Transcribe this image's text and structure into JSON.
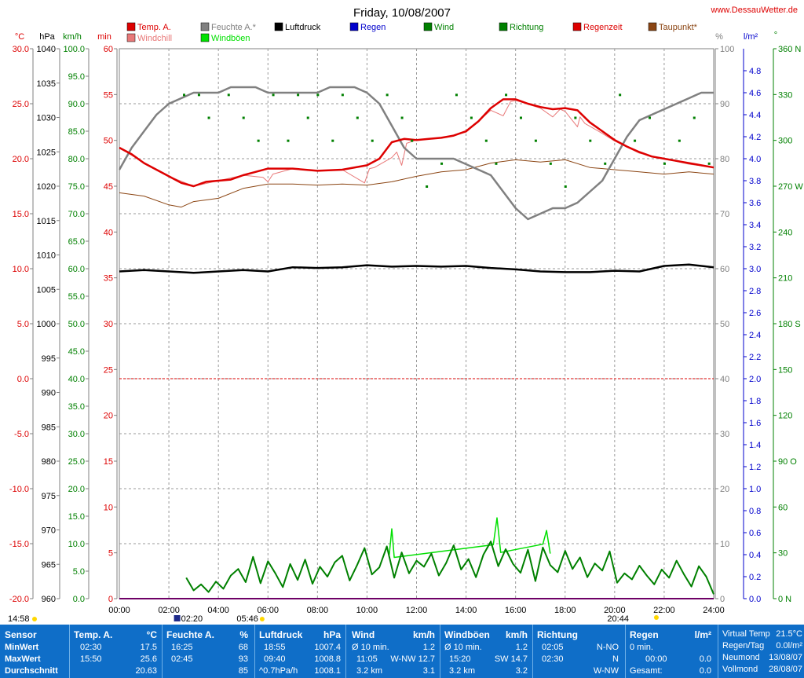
{
  "title": "Friday, 10/08/2007",
  "site": "www.DessauWetter.de",
  "legend": [
    {
      "label": "Temp. A.",
      "color": "#dd0000"
    },
    {
      "label": "Windchill",
      "color": "#e87878"
    },
    {
      "label": "Feuchte A.*",
      "color": "#808080"
    },
    {
      "label": "Windböen",
      "color": "#00e000"
    },
    {
      "label": "Luftdruck",
      "color": "#000000"
    },
    {
      "label": "Regen",
      "color": "#0000cc"
    },
    {
      "label": "Wind",
      "color": "#008000"
    },
    {
      "label": "Richtung",
      "color": "#008000"
    },
    {
      "label": "Regenzeit",
      "color": "#dd0000"
    },
    {
      "label": "Taupunkt*",
      "color": "#8b4513"
    }
  ],
  "axis_units": {
    "temp": "°C",
    "pressure": "hPa",
    "wind": "km/h",
    "min": "min",
    "humidity": "%",
    "rain": "l/m²",
    "direction": "°"
  },
  "chart_data": {
    "type": "line",
    "x_unit": "hours",
    "x_ticks": [
      "00:00",
      "02:00",
      "04:00",
      "06:00",
      "08:00",
      "10:00",
      "12:00",
      "14:00",
      "16:00",
      "18:00",
      "20:00",
      "22:00",
      "24:00"
    ],
    "xlim": [
      0,
      24
    ],
    "axes": {
      "temp": {
        "lim": [
          -20,
          30
        ],
        "ticks": [
          "30.0",
          "25.0",
          "20.0",
          "15.0",
          "10.0",
          "5.0",
          "0.0",
          "-5.0",
          "-10.0",
          "-15.0",
          "-20.0"
        ]
      },
      "pressure": {
        "lim": [
          960,
          1040
        ],
        "ticks": [
          "1040",
          "1035",
          "1030",
          "1025",
          "1020",
          "1015",
          "1010",
          "1005",
          "1000",
          "995",
          "990",
          "985",
          "980",
          "975",
          "970",
          "965",
          "960"
        ]
      },
      "wind": {
        "lim": [
          0,
          100
        ],
        "ticks": [
          "100.0",
          "95.0",
          "90.0",
          "85.0",
          "80.0",
          "75.0",
          "70.0",
          "65.0",
          "60.0",
          "55.0",
          "50.0",
          "45.0",
          "40.0",
          "35.0",
          "30.0",
          "25.0",
          "20.0",
          "15.0",
          "10.0",
          "5.0",
          "0.0"
        ]
      },
      "minutes": {
        "lim": [
          0,
          60
        ],
        "ticks": [
          "60",
          "55",
          "50",
          "45",
          "40",
          "35",
          "30",
          "25",
          "20",
          "15",
          "10",
          "5",
          "0"
        ]
      },
      "humidity": {
        "lim": [
          0,
          100
        ],
        "ticks": [
          "100",
          "90",
          "80",
          "70",
          "60",
          "50",
          "40",
          "30",
          "20",
          "10",
          "0"
        ]
      },
      "rain": {
        "lim": [
          0,
          5
        ],
        "ticks": [
          "4.8",
          "4.6",
          "4.4",
          "4.2",
          "4.0",
          "3.8",
          "3.6",
          "3.4",
          "3.2",
          "3.0",
          "2.8",
          "2.6",
          "2.4",
          "2.2",
          "2.0",
          "1.8",
          "1.6",
          "1.4",
          "1.2",
          "1.0",
          "0.8",
          "0.6",
          "0.4",
          "0.2",
          "0.0"
        ]
      },
      "direction": {
        "lim": [
          0,
          360
        ],
        "ticks": [
          "360 N",
          "330",
          "300",
          "270 W",
          "240",
          "210",
          "180 S",
          "150",
          "120",
          "90 O",
          "60",
          "30",
          "0 N"
        ]
      }
    },
    "series": [
      {
        "name": "Temp. A.",
        "axis": "temp",
        "x": [
          0,
          0.5,
          1,
          1.5,
          2,
          2.5,
          3,
          3.5,
          4,
          4.5,
          5,
          5.5,
          6,
          7,
          8,
          9,
          10,
          10.5,
          11,
          11.5,
          12,
          12.5,
          13,
          13.5,
          14,
          14.5,
          15,
          15.5,
          16,
          16.5,
          17,
          17.5,
          18,
          18.5,
          19,
          19.5,
          20,
          20.5,
          21,
          21.5,
          22,
          22.5,
          23,
          23.5,
          24
        ],
        "values": [
          21.0,
          20.4,
          19.6,
          19.0,
          18.4,
          17.8,
          17.5,
          17.9,
          18.0,
          18.1,
          18.5,
          18.8,
          19.1,
          19.1,
          18.9,
          19.0,
          19.4,
          20.0,
          21.5,
          21.8,
          21.7,
          21.8,
          21.9,
          22.1,
          22.5,
          23.4,
          24.6,
          25.4,
          25.4,
          25.0,
          24.7,
          24.5,
          24.6,
          24.4,
          23.3,
          22.5,
          21.7,
          21.1,
          20.6,
          20.2,
          20.0,
          19.8,
          19.6,
          19.4,
          19.2
        ]
      },
      {
        "name": "Windchill",
        "axis": "temp",
        "x": [
          0,
          1,
          2,
          3,
          4,
          5,
          5.8,
          6,
          6.2,
          7,
          8,
          9,
          9.9,
          10.1,
          10.3,
          11,
          11.2,
          11.4,
          11.6,
          12,
          13,
          14,
          15,
          15.5,
          15.8,
          16,
          17,
          17.5,
          17.8,
          18,
          18.5,
          18.6,
          18.8,
          19.5,
          20,
          21,
          22,
          23,
          24
        ],
        "values": [
          21.0,
          19.6,
          18.4,
          17.5,
          18.0,
          18.5,
          18.3,
          17.9,
          18.6,
          19.1,
          18.9,
          19.0,
          17.8,
          19.1,
          19.2,
          20.1,
          20.6,
          19.4,
          21.4,
          21.7,
          21.9,
          22.4,
          24.4,
          23.9,
          25.2,
          25.3,
          24.6,
          23.8,
          24.5,
          24.3,
          22.9,
          23.8,
          23.2,
          22.3,
          21.6,
          20.5,
          20.0,
          19.5,
          19.2
        ]
      },
      {
        "name": "Feuchte A.*",
        "axis": "humidity",
        "x": [
          0,
          0.5,
          1,
          1.5,
          2,
          2.5,
          3,
          3.5,
          4,
          4.5,
          5,
          5.5,
          6,
          7,
          8,
          8.5,
          9,
          9.5,
          10,
          10.5,
          11,
          11.5,
          12,
          12.5,
          13,
          13.5,
          14,
          14.5,
          15,
          15.5,
          16,
          16.5,
          17,
          17.5,
          18,
          18.5,
          19,
          19.5,
          20,
          20.5,
          21,
          21.5,
          22,
          22.5,
          23,
          23.5,
          24
        ],
        "values": [
          78,
          82,
          85,
          88,
          90,
          91,
          92,
          92,
          92,
          93,
          93,
          93,
          92,
          92,
          92,
          93,
          93,
          93,
          92,
          90,
          86,
          82,
          80,
          80,
          80,
          80,
          79,
          78,
          77,
          74,
          71,
          69,
          70,
          71,
          71,
          72,
          74,
          76,
          80,
          84,
          87,
          88,
          89,
          90,
          91,
          92,
          92
        ]
      },
      {
        "name": "Luftdruck",
        "axis": "pressure",
        "x": [
          0,
          1,
          2,
          3,
          4,
          5,
          6,
          7,
          8,
          9,
          10,
          11,
          12,
          13,
          14,
          15,
          16,
          17,
          18,
          19,
          20,
          21,
          22,
          23,
          24
        ],
        "values": [
          1007.6,
          1007.8,
          1007.6,
          1007.4,
          1007.6,
          1007.8,
          1007.6,
          1008.2,
          1008.1,
          1008.2,
          1008.5,
          1008.3,
          1008.4,
          1008.3,
          1008.4,
          1008.1,
          1007.9,
          1007.6,
          1007.5,
          1007.5,
          1007.7,
          1007.6,
          1008.4,
          1008.6,
          1008.2
        ]
      },
      {
        "name": "Taupunkt*",
        "axis": "temp",
        "x": [
          0,
          1,
          2,
          2.5,
          3,
          4,
          5,
          6,
          7,
          8,
          9,
          10,
          11,
          12,
          13,
          14,
          15,
          16,
          17,
          18,
          19,
          20,
          21,
          22,
          23,
          24
        ],
        "values": [
          16.9,
          16.6,
          15.8,
          15.6,
          16.1,
          16.4,
          17.3,
          17.7,
          17.7,
          17.6,
          17.7,
          17.6,
          17.9,
          18.4,
          18.8,
          19.0,
          19.6,
          19.9,
          19.7,
          19.9,
          19.2,
          19.0,
          18.8,
          18.6,
          18.8,
          18.6
        ]
      },
      {
        "name": "Wind",
        "axis": "wind",
        "x": [
          2.7,
          3,
          3.3,
          3.6,
          3.9,
          4.2,
          4.5,
          4.8,
          5.1,
          5.4,
          5.7,
          6,
          6.3,
          6.6,
          6.9,
          7.2,
          7.5,
          7.8,
          8.1,
          8.4,
          8.7,
          9,
          9.3,
          9.6,
          9.9,
          10.2,
          10.5,
          10.8,
          11.1,
          11.4,
          11.7,
          12,
          12.3,
          12.6,
          12.9,
          13.2,
          13.5,
          13.8,
          14.1,
          14.4,
          14.7,
          15,
          15.3,
          15.6,
          15.9,
          16.2,
          16.5,
          16.8,
          17.1,
          17.4,
          17.7,
          18,
          18.3,
          18.6,
          18.9,
          19.2,
          19.5,
          19.8,
          20.1,
          20.4,
          20.7,
          21,
          21.3,
          21.6,
          21.9,
          22.2,
          22.5,
          22.8,
          23.1,
          23.4,
          23.7,
          24
        ],
        "values": [
          3.8,
          1.5,
          2.6,
          1.2,
          3.1,
          1.8,
          4.2,
          5.4,
          3.0,
          7.6,
          2.8,
          6.8,
          4.6,
          2.1,
          6.3,
          3.4,
          7.1,
          2.7,
          5.8,
          4.0,
          6.6,
          7.8,
          3.3,
          6.1,
          9.2,
          4.4,
          5.7,
          9.5,
          3.8,
          8.4,
          4.6,
          6.9,
          5.8,
          8.2,
          4.2,
          6.5,
          9.7,
          5.3,
          7.2,
          3.9,
          8.0,
          10.4,
          5.9,
          9.0,
          6.3,
          4.7,
          8.9,
          3.2,
          9.3,
          6.1,
          4.8,
          8.7,
          5.4,
          7.5,
          3.9,
          6.4,
          5.1,
          8.6,
          2.9,
          4.6,
          3.5,
          6.0,
          4.2,
          2.6,
          5.3,
          3.8,
          6.9,
          4.4,
          2.2,
          5.9,
          4.0,
          0.8
        ]
      },
      {
        "name": "Windböen",
        "axis": "wind",
        "x": [
          10.9,
          11.0,
          11.1,
          15.1,
          15.25,
          15.4,
          17.1,
          17.25,
          17.4
        ],
        "values": [
          8.0,
          12.7,
          7.5,
          9.8,
          14.7,
          8.4,
          9.9,
          12.4,
          8.2
        ]
      },
      {
        "name": "Richtung",
        "axis": "direction",
        "type": "scatter",
        "x": [
          2.6,
          3.2,
          3.6,
          4.4,
          5.0,
          5.6,
          6.2,
          6.8,
          7.2,
          7.6,
          8.0,
          8.6,
          9.0,
          9.6,
          10.2,
          10.8,
          11.4,
          11.8,
          12.4,
          13.0,
          13.6,
          14.2,
          14.8,
          15.2,
          15.6,
          16.2,
          16.8,
          17.4,
          18.0,
          18.4,
          19.0,
          19.6,
          20.2,
          20.8,
          21.4,
          22.0,
          22.6,
          23.2,
          23.8
        ],
        "values": [
          330,
          330,
          315,
          330,
          315,
          300,
          330,
          300,
          330,
          315,
          330,
          300,
          330,
          315,
          300,
          330,
          315,
          300,
          270,
          285,
          330,
          315,
          300,
          285,
          330,
          315,
          300,
          285,
          270,
          315,
          300,
          285,
          330,
          300,
          315,
          285,
          300,
          315,
          285
        ]
      },
      {
        "name": "Regen",
        "axis": "rain",
        "x": [
          0,
          24
        ],
        "values": [
          0,
          0
        ]
      },
      {
        "name": "Regenzeit",
        "axis": "minutes",
        "x": [
          0,
          24
        ],
        "values": [
          0,
          0
        ]
      }
    ],
    "reference_lines": [
      {
        "axis": "temp",
        "value": 0,
        "color": "#dd0000"
      }
    ],
    "markers": {
      "sunrise": "05:46",
      "sunset": "20:44",
      "bottom_left": "14:58",
      "moon": "02:20"
    }
  },
  "stats": {
    "sensor": {
      "title": "Sensor",
      "rows": [
        "MinWert",
        "MaxWert",
        "Durchschnitt"
      ]
    },
    "temp": {
      "title": "Temp. A.",
      "unit": "°C",
      "rows": [
        [
          "02:30",
          "17.5"
        ],
        [
          "15:50",
          "25.6"
        ],
        [
          "",
          "20.63"
        ]
      ]
    },
    "humidity": {
      "title": "Feuchte A.",
      "unit": "%",
      "rows": [
        [
          "16:25",
          "68"
        ],
        [
          "02:45",
          "93"
        ],
        [
          "",
          "85"
        ]
      ]
    },
    "pressure": {
      "title": "Luftdruck",
      "unit": "hPa",
      "rows": [
        [
          "18:55",
          "1007.4"
        ],
        [
          "09:40",
          "1008.8"
        ],
        [
          "^0.7hPa/h",
          "1008.1"
        ]
      ]
    },
    "wind": {
      "title": "Wind",
      "unit": "km/h",
      "rows": [
        [
          "Ø 10 min.",
          "1.2"
        ],
        [
          "11:05",
          "W-NW 12.7"
        ],
        [
          "3.2 km",
          "3.1"
        ]
      ]
    },
    "gusts": {
      "title": "Windböen",
      "unit": "km/h",
      "rows": [
        [
          "Ø 10 min.",
          "1.2"
        ],
        [
          "15:20",
          "SW 14.7"
        ],
        [
          "3.2 km",
          "3.2"
        ]
      ]
    },
    "direction": {
      "title": "Richtung",
      "unit": "",
      "rows": [
        [
          "02:05",
          "N-NO"
        ],
        [
          "02:30",
          "N"
        ],
        [
          "",
          "W-NW"
        ]
      ]
    },
    "rain": {
      "title": "Regen",
      "unit": "l/m²",
      "rows": [
        [
          "0 min.",
          ""
        ],
        [
          "00:00",
          "0.0"
        ],
        [
          "Gesamt:",
          "0.0"
        ]
      ]
    },
    "extra": {
      "rows": [
        [
          "Virtual Temp",
          "21.5°C"
        ],
        [
          "Regen/Tag",
          "0.0l/m²"
        ],
        [
          "Neumond",
          "13/08/07"
        ],
        [
          "Vollmond",
          "28/08/07"
        ]
      ]
    }
  }
}
